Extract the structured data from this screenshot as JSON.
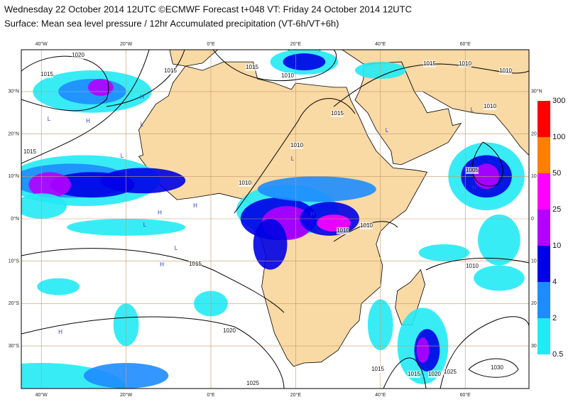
{
  "header": {
    "title": "Wednesday 22 October 2014 12UTC ©ECMWF Forecast t+048 VT: Friday 24 October 2014 12UTC",
    "subtitle": "Surface: Mean sea level pressure / 12hr Accumulated precipitation (VT-6h/VT+6h)"
  },
  "map": {
    "lon_labels": [
      "40°W",
      "20°W",
      "0°E",
      "20°E",
      "40°E",
      "60°E"
    ],
    "lat_labels": [
      "30°N",
      "20°N",
      "10°N",
      "0°N",
      "10°S",
      "20°S",
      "30°S"
    ],
    "right_lat_labels": [
      "30°N",
      "20",
      "10",
      "0",
      "10",
      "20",
      "30"
    ],
    "isobar_labels": [
      "1020",
      "1015",
      "1015",
      "1015",
      "1010",
      "1015",
      "1010",
      "1010",
      "1015",
      "1010",
      "1015",
      "1010",
      "1010",
      "1005",
      "1010",
      "1010",
      "1015",
      "1010",
      "1020",
      "1025",
      "1015",
      "1015",
      "1020",
      "1025",
      "1030"
    ],
    "pressure_centers": [
      "H",
      "L",
      "H",
      "L",
      "L",
      "H",
      "L",
      "L",
      "H",
      "L",
      "H",
      "L",
      "H",
      "H",
      "L",
      "H"
    ]
  },
  "legend": {
    "labels": [
      "300",
      "100",
      "50",
      "25",
      "10",
      "4",
      "2",
      "0.5"
    ],
    "colors": [
      "#ff0000",
      "#ff8000",
      "#ff00ff",
      "#b400ff",
      "#0000e6",
      "#1e8cff",
      "#22eaf5"
    ]
  }
}
